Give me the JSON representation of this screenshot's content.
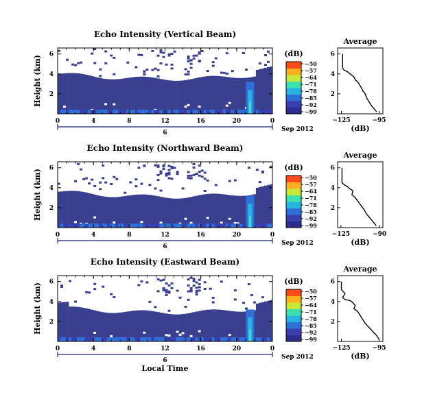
{
  "chart_data": [
    {
      "type": "heatmap",
      "title": "Echo Intensity (Vertical Beam)",
      "ylabel": "Height (km)",
      "xticks": [
        "0",
        "4",
        "8",
        "12",
        "16",
        "20",
        "0"
      ],
      "yticks": [
        "2",
        "4",
        "6"
      ],
      "ylim": [
        0,
        6.6
      ],
      "date_ticks": [
        "6"
      ],
      "date_label": "Sep 2012",
      "colorbar": {
        "label": "(dB)",
        "ticks": [
          "-50",
          "-57",
          "-64",
          "-71",
          "-78",
          "-85",
          "-92",
          "-99"
        ]
      },
      "profile": {
        "title": "Average",
        "xlabel": "(dB)",
        "xticks": [
          "-125",
          "-95"
        ],
        "yticks": [
          "2",
          "4",
          "6"
        ],
        "points": [
          [
            -124,
            6.0
          ],
          [
            -124,
            4.6
          ],
          [
            -123,
            4.4
          ],
          [
            -120,
            4.2
          ],
          [
            -118,
            4.0
          ],
          [
            -115,
            3.7
          ],
          [
            -114,
            3.4
          ],
          [
            -112,
            3.2
          ],
          [
            -111,
            3.0
          ],
          [
            -109,
            2.6
          ],
          [
            -108,
            2.3
          ],
          [
            -106,
            2.0
          ],
          [
            -105,
            1.6
          ],
          [
            -103,
            1.2
          ],
          [
            -101,
            0.8
          ],
          [
            -99,
            0.5
          ],
          [
            -97,
            0.2
          ]
        ]
      }
    },
    {
      "type": "heatmap",
      "title": "Echo Intensity (Northward Beam)",
      "ylabel": "Height (km)",
      "xticks": [
        "0",
        "4",
        "8",
        "12",
        "16",
        "20",
        "0"
      ],
      "yticks": [
        "2",
        "4",
        "6"
      ],
      "ylim": [
        0,
        6.6
      ],
      "date_ticks": [
        "6"
      ],
      "date_label": "Sep 2012",
      "colorbar": {
        "label": "(dB)",
        "ticks": [
          "-50",
          "-57",
          "-64",
          "-71",
          "-78",
          "-85",
          "-92",
          "-99"
        ]
      },
      "profile": {
        "title": "Average",
        "xlabel": "(dB)",
        "xticks": [
          "-125",
          "-90"
        ],
        "yticks": [
          "2",
          "4",
          "6"
        ],
        "points": [
          [
            -124,
            6.0
          ],
          [
            -124,
            4.5
          ],
          [
            -122,
            4.3
          ],
          [
            -119,
            4.1
          ],
          [
            -117,
            3.9
          ],
          [
            -114,
            3.7
          ],
          [
            -115,
            3.3
          ],
          [
            -112,
            3.0
          ],
          [
            -110,
            2.7
          ],
          [
            -108,
            2.4
          ],
          [
            -106,
            2.1
          ],
          [
            -104,
            1.8
          ],
          [
            -102,
            1.4
          ],
          [
            -99,
            1.0
          ],
          [
            -96,
            0.6
          ],
          [
            -93,
            0.2
          ]
        ]
      }
    },
    {
      "type": "heatmap",
      "title": "Echo Intensity (Eastward Beam)",
      "ylabel": "Height (km)",
      "xticks": [
        "0",
        "4",
        "8",
        "12",
        "16",
        "20",
        "0"
      ],
      "yticks": [
        "2",
        "4",
        "6"
      ],
      "ylim": [
        0,
        6.6
      ],
      "date_ticks": [
        "6"
      ],
      "date_label": "Sep 2012",
      "xlabel": "Local Time",
      "colorbar": {
        "label": "(dB)",
        "ticks": [
          "-50",
          "-57",
          "-64",
          "-71",
          "-78",
          "-85",
          "-92",
          "-99"
        ]
      },
      "profile": {
        "title": "Average",
        "xlabel": "(dB)",
        "xticks": [
          "-125",
          "-95"
        ],
        "yticks": [
          "2",
          "4",
          "6"
        ],
        "points": [
          [
            -125,
            6.0
          ],
          [
            -125,
            5.2
          ],
          [
            -122,
            4.8
          ],
          [
            -124,
            4.4
          ],
          [
            -122,
            4.2
          ],
          [
            -118,
            4.1
          ],
          [
            -116,
            3.9
          ],
          [
            -114,
            3.6
          ],
          [
            -115,
            3.3
          ],
          [
            -112,
            3.0
          ],
          [
            -110,
            2.6
          ],
          [
            -108,
            2.2
          ],
          [
            -106,
            1.8
          ],
          [
            -103,
            1.4
          ],
          [
            -100,
            1.0
          ],
          [
            -97,
            0.6
          ],
          [
            -95,
            0.2
          ]
        ]
      }
    }
  ],
  "colors": {
    "colormap": [
      "#2b2e8c",
      "#3a3fb0",
      "#2f6fd8",
      "#28b4e0",
      "#3fe0b0",
      "#c8e83a",
      "#ffb020",
      "#ff4a1a"
    ],
    "background": "#3b3f8f"
  }
}
